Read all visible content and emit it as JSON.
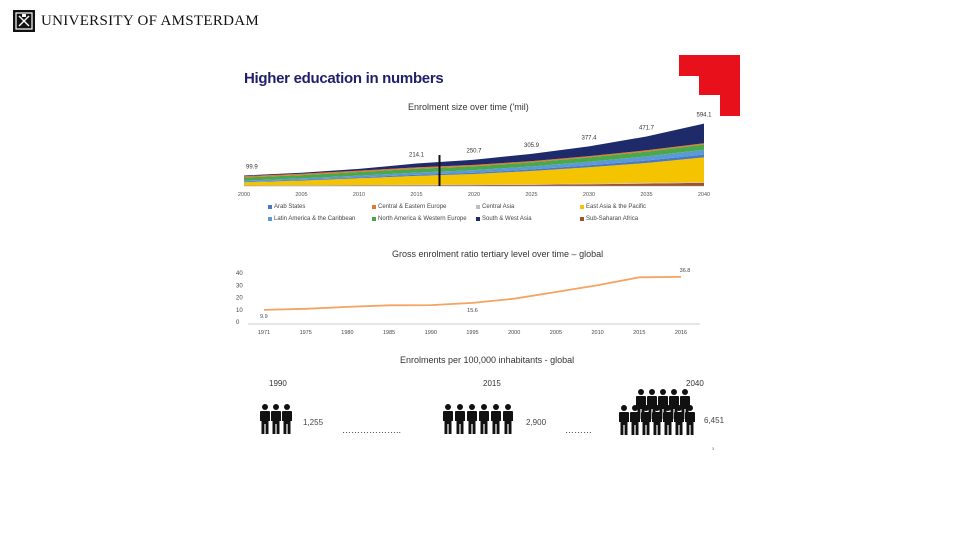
{
  "header": {
    "logo_text": "UNIVERSITY OF AMSTERDAM",
    "page_title": "Higher education in numbers"
  },
  "colors": {
    "brand_red": "#e8101a",
    "navy": "#1f2a6b",
    "orange": "#f4a460"
  },
  "chart_data": [
    {
      "type": "area",
      "title": "Enrolment size over time ('mil)",
      "x": [
        2000,
        2005,
        2010,
        2015,
        2020,
        2025,
        2030,
        2035,
        2040
      ],
      "x_tick_labels": [
        "2000",
        "2005",
        "2010",
        "2015",
        "2020",
        "2025",
        "2030",
        "2035",
        "2040"
      ],
      "totals_points": [
        {
          "x": 2000,
          "y": 99.9,
          "label": "99.9"
        },
        {
          "x": 2015,
          "y": 214.1,
          "label": "214.1"
        },
        {
          "x": 2020,
          "y": 250.7,
          "label": "250.7"
        },
        {
          "x": 2025,
          "y": 305.9,
          "label": "305.9"
        },
        {
          "x": 2030,
          "y": 377.4,
          "label": "377.4"
        },
        {
          "x": 2035,
          "y": 471.7,
          "label": "471.7"
        },
        {
          "x": 2040,
          "y": 594.1,
          "label": "594.1"
        }
      ],
      "divider_year": 2017,
      "series": [
        {
          "name": "Sub-Saharan Africa",
          "color": "#a0522d",
          "values": [
            2.0,
            3.0,
            4.5,
            6.5,
            9,
            12,
            17,
            23,
            30
          ]
        },
        {
          "name": "Central Asia",
          "color": "#bfbfbf",
          "values": [
            3.0,
            3.5,
            4.0,
            4.5,
            5,
            5.5,
            6,
            6.5,
            7
          ]
        },
        {
          "name": "East Asia & the Pacific",
          "color": "#f5c400",
          "values": [
            30,
            45,
            65,
            85,
            100,
            125,
            155,
            190,
            235
          ]
        },
        {
          "name": "Arab States",
          "color": "#4a78c2",
          "values": [
            5,
            6.5,
            8.5,
            11,
            13,
            15.5,
            19,
            23,
            28
          ]
        },
        {
          "name": "Latin America & the Caribbean",
          "color": "#5b9bd5",
          "values": [
            11,
            14,
            17,
            21,
            24,
            28,
            33,
            39,
            45
          ]
        },
        {
          "name": "North America & Western Europe",
          "color": "#4aa84a",
          "values": [
            30,
            32,
            34,
            36,
            37,
            39,
            42,
            46,
            50
          ]
        },
        {
          "name": "Central & Eastern Europe",
          "color": "#e07a2e",
          "values": [
            12,
            13,
            14,
            13,
            13,
            12.5,
            12.5,
            12.5,
            13
          ]
        },
        {
          "name": "South & West Asia",
          "color": "#1f2a6b",
          "values": [
            6.9,
            10,
            15.5,
            37.1,
            49.7,
            68.4,
            92.9,
            131.7,
            186.1
          ]
        }
      ],
      "legend": [
        "Arab States",
        "Central & Eastern Europe",
        "Central Asia",
        "East Asia & the Pacific",
        "Latin America & the Caribbean",
        "North America & Western Europe",
        "South & West Asia",
        "Sub-Saharan Africa"
      ]
    },
    {
      "type": "line",
      "title": "Gross enrolment ratio tertiary level over time – global",
      "x_labels": [
        "1971",
        "1975",
        "1980",
        "1985",
        "1990",
        "1995",
        "2000",
        "2005",
        "2010",
        "2015",
        "2016"
      ],
      "values": [
        9.9,
        10.8,
        12.3,
        13.6,
        13.8,
        15.6,
        19.0,
        24.5,
        30.0,
        36.5,
        36.8
      ],
      "data_labels": [
        {
          "index": 0,
          "label": "9.9"
        },
        {
          "index": 5,
          "label": "15.6"
        },
        {
          "index": 10,
          "label": "36.8"
        }
      ],
      "y_ticks": [
        "0",
        "10",
        "20",
        "30",
        "40"
      ],
      "ylim": [
        0,
        40
      ],
      "color": "#f4a460"
    },
    {
      "type": "pictogram",
      "title": "Enrolments per 100,000 inhabitants - global",
      "groups": [
        {
          "year": "1990",
          "value": "1,255",
          "icons": 3,
          "dots": "……………….."
        },
        {
          "year": "2015",
          "value": "2,900",
          "icons": 6,
          "dots": "………"
        },
        {
          "year": "2040",
          "value": "6,451",
          "icons": 12,
          "dots": ""
        }
      ]
    }
  ],
  "footer": {
    "page_number": "3"
  }
}
